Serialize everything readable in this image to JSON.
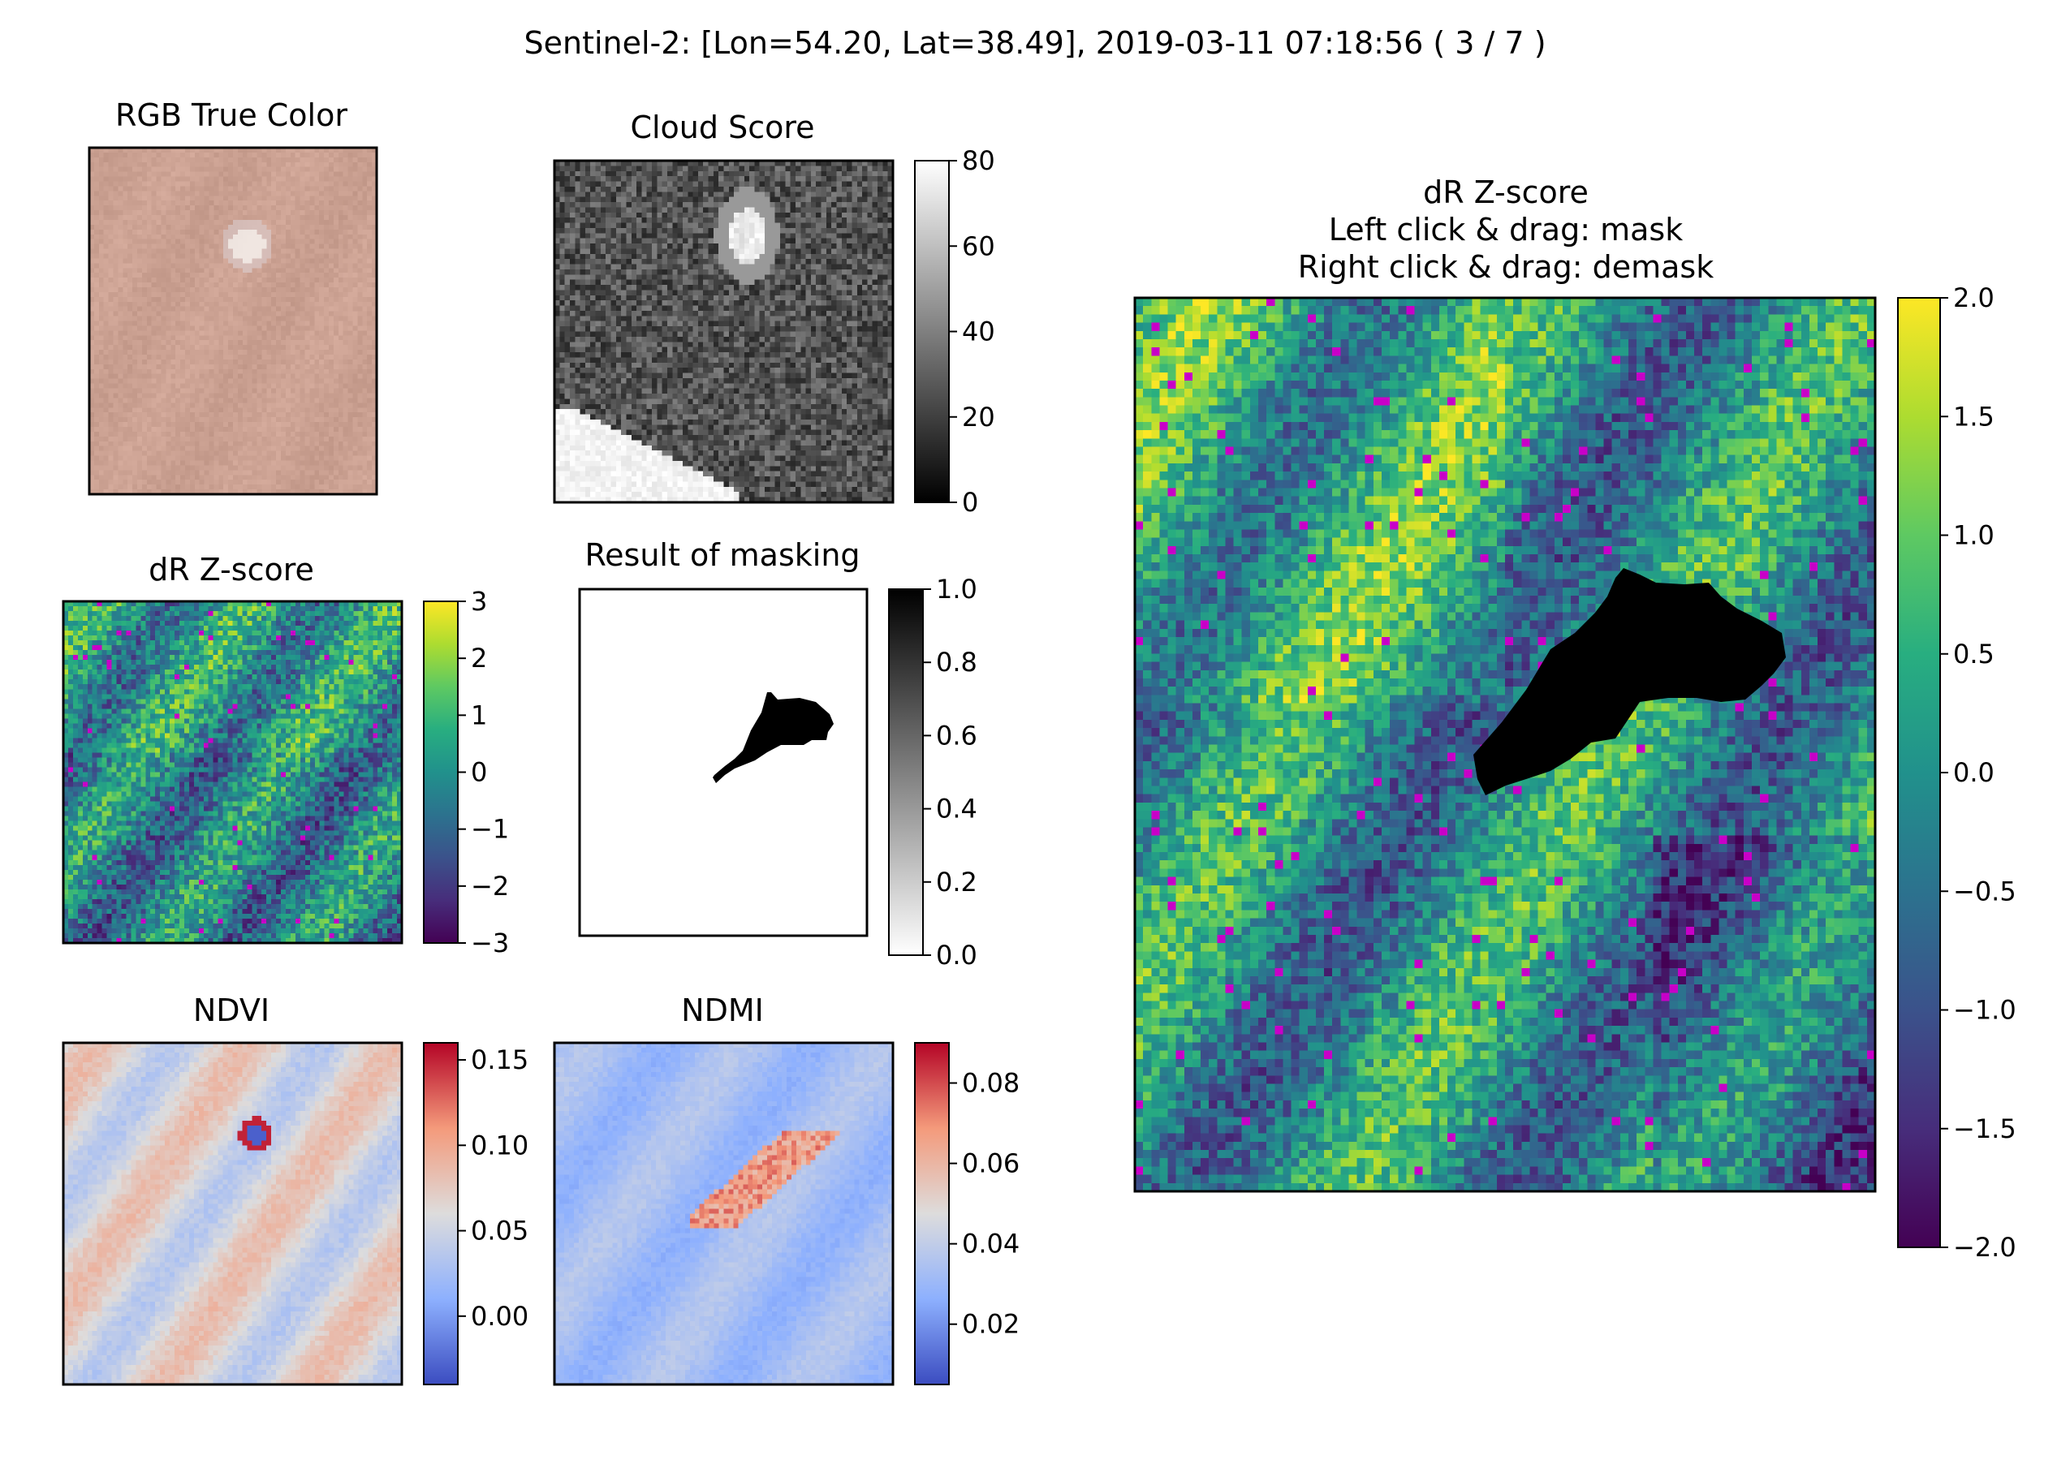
{
  "figure_title": "Sentinel-2: [Lon=54.20, Lat=38.49], 2019-03-11 07:18:56 ( 3 / 7 )",
  "colors": {
    "rgb_base": "#cfa595",
    "mask_fill": "#000000",
    "highlight": "#c800c8"
  },
  "chart_data": [
    {
      "id": "rgb",
      "type": "heatmap",
      "title": "RGB True Color",
      "colormap": "truecolor",
      "colorbar": false
    },
    {
      "id": "cloud",
      "type": "heatmap",
      "title": "Cloud Score",
      "colormap": "gray",
      "vmin": 0,
      "vmax": 80,
      "colorbar_ticks": [
        "0",
        "20",
        "40",
        "60",
        "80"
      ]
    },
    {
      "id": "dr_small",
      "type": "heatmap",
      "title": "dR Z-score",
      "colormap": "viridis",
      "vmin": -3,
      "vmax": 3,
      "colorbar_ticks": [
        "−3",
        "−2",
        "−1",
        "0",
        "1",
        "2",
        "3"
      ]
    },
    {
      "id": "mask",
      "type": "heatmap",
      "title": "Result of masking",
      "colormap": "gray_r",
      "vmin": 0,
      "vmax": 1,
      "colorbar_ticks": [
        "0.0",
        "0.2",
        "0.4",
        "0.6",
        "0.8",
        "1.0"
      ]
    },
    {
      "id": "ndvi",
      "type": "heatmap",
      "title": "NDVI",
      "colormap": "coolwarm",
      "vmin": -0.04,
      "vmax": 0.16,
      "colorbar_ticks": [
        "0.00",
        "0.05",
        "0.10",
        "0.15"
      ]
    },
    {
      "id": "ndmi",
      "type": "heatmap",
      "title": "NDMI",
      "colormap": "coolwarm",
      "vmin": 0.005,
      "vmax": 0.09,
      "colorbar_ticks": [
        "0.02",
        "0.04",
        "0.06",
        "0.08"
      ]
    },
    {
      "id": "dr_large",
      "type": "heatmap",
      "title_lines": [
        "dR Z-score",
        "Left click & drag: mask",
        "Right click & drag: demask"
      ],
      "colormap": "viridis",
      "vmin": -2,
      "vmax": 2,
      "colorbar_ticks": [
        "−2.0",
        "−1.5",
        "−1.0",
        "−0.5",
        "0.0",
        "0.5",
        "1.0",
        "1.5",
        "2.0"
      ]
    }
  ]
}
